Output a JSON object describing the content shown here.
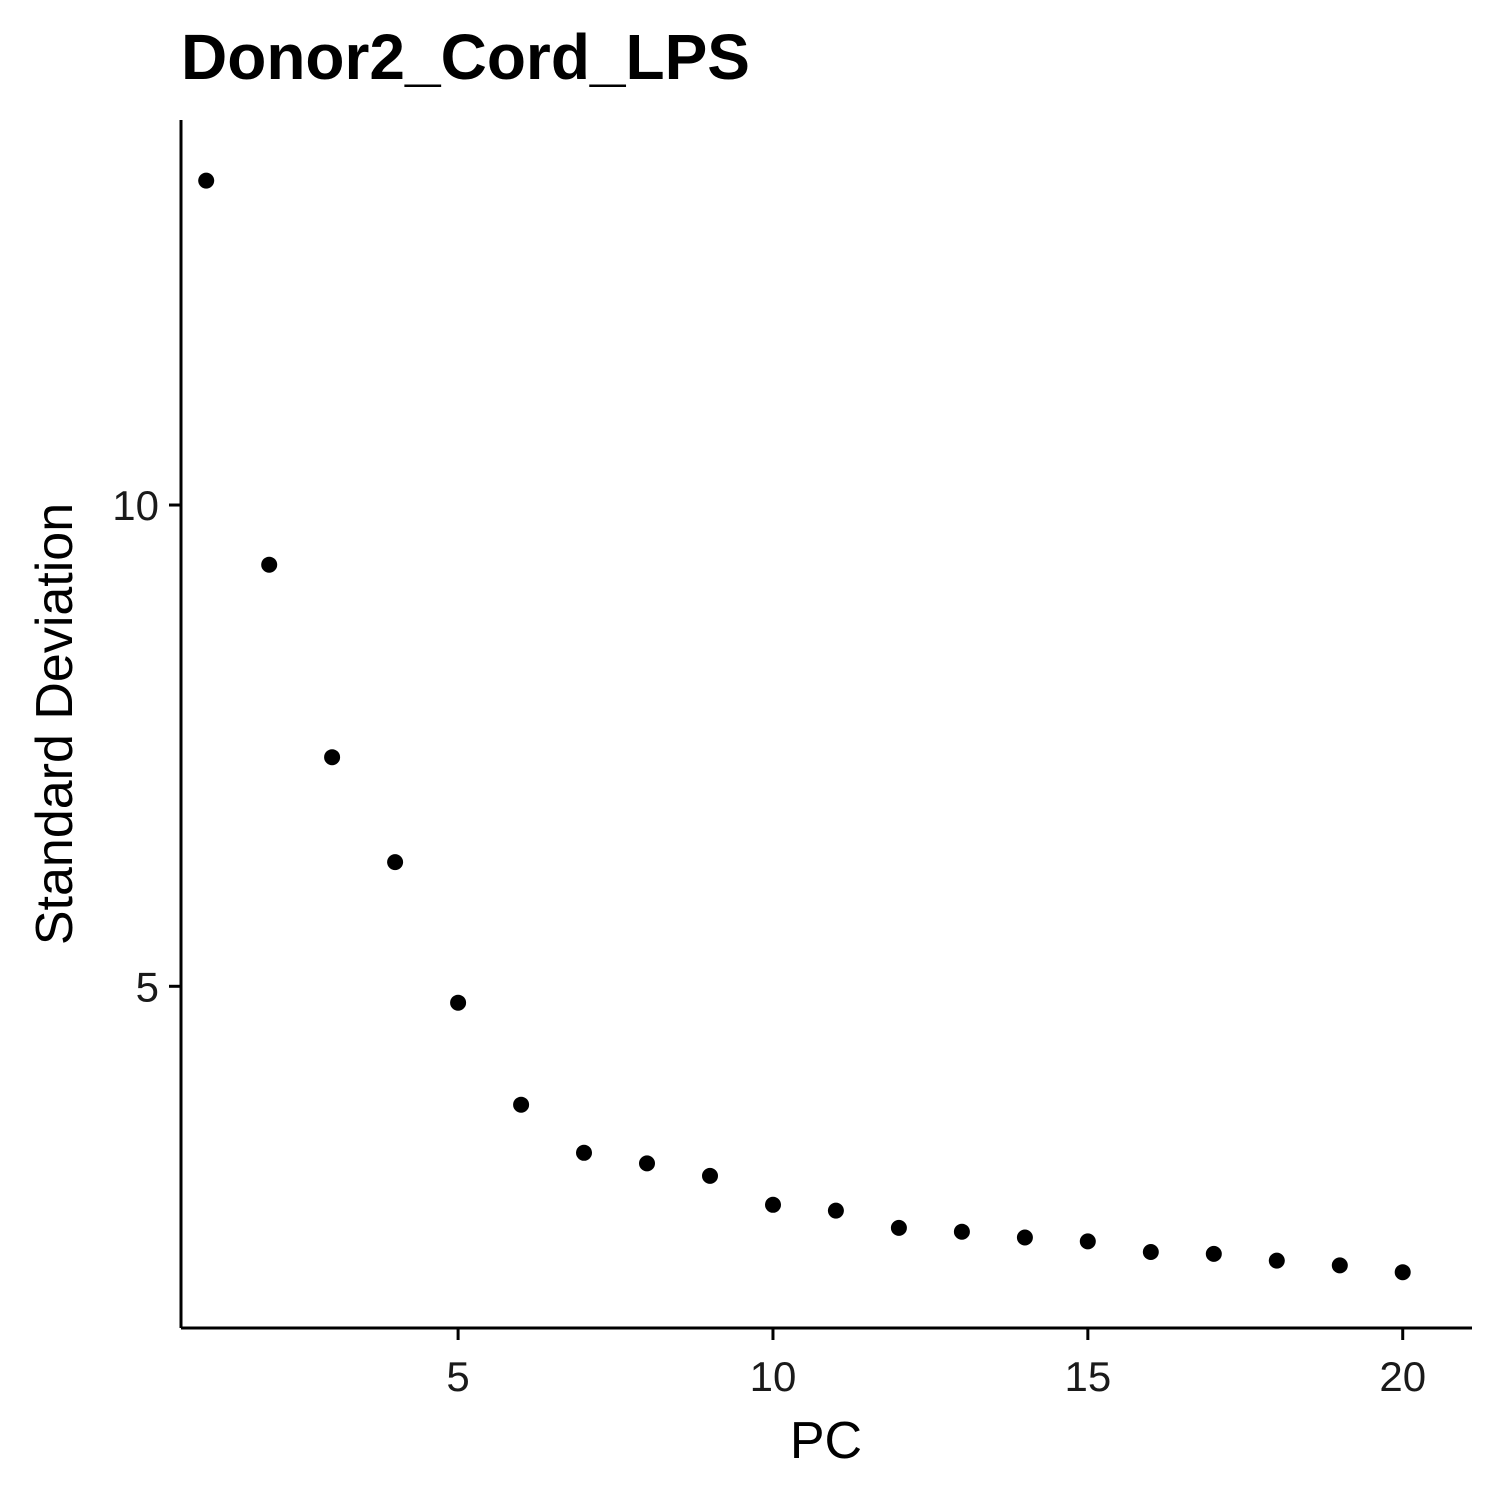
{
  "chart_data": {
    "type": "scatter",
    "title": "Donor2_Cord_LPS",
    "xlabel": "PC",
    "ylabel": "Standard Deviation",
    "x": [
      1,
      2,
      3,
      4,
      5,
      6,
      7,
      8,
      9,
      10,
      11,
      12,
      13,
      14,
      15,
      16,
      17,
      18,
      19,
      20
    ],
    "y": [
      13.37,
      9.38,
      7.38,
      6.29,
      4.83,
      3.77,
      3.27,
      3.16,
      3.03,
      2.73,
      2.67,
      2.49,
      2.45,
      2.39,
      2.35,
      2.24,
      2.22,
      2.15,
      2.1,
      2.03
    ],
    "xlim": [
      0.6,
      21.1
    ],
    "ylim": [
      1.45,
      14.0
    ],
    "x_ticks": [
      5,
      10,
      15,
      20
    ],
    "y_ticks": [
      5,
      10
    ],
    "legend": false,
    "grid": false,
    "point_color": "#000000"
  }
}
